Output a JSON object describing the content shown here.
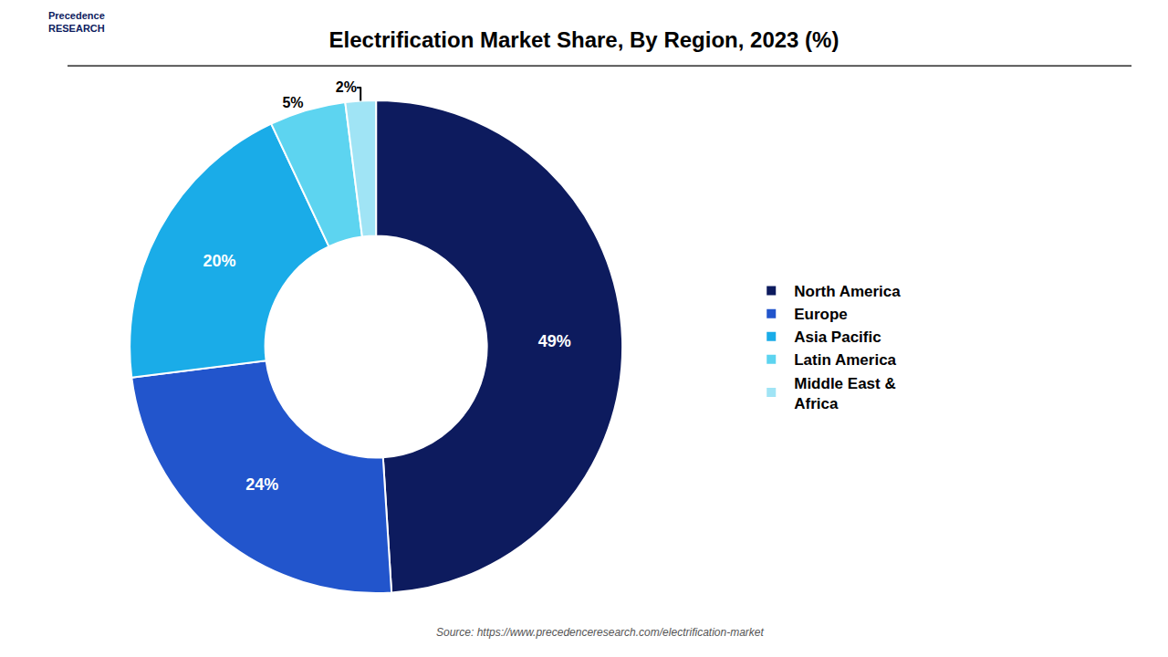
{
  "chart_data": {
    "type": "donut",
    "title": "Electrification Market Share, By Region, 2023 (%)",
    "categories": [
      "North America",
      "Europe",
      "Asia Pacific",
      "Latin America",
      "Middle East &\nAfrica"
    ],
    "values": [
      49,
      24,
      20,
      5,
      2
    ],
    "value_labels": [
      "49%",
      "24%",
      "20%",
      "5%",
      "2%"
    ],
    "colors": [
      "#0d1b5e",
      "#2255cc",
      "#1aace8",
      "#5dd4f0",
      "#a0e4f5"
    ],
    "data_labels": true,
    "legend": "right",
    "annotations": [
      "Precedence\nRESEARCH",
      "Source: https://www.precedenceresearch.com/electrification-market"
    ]
  }
}
